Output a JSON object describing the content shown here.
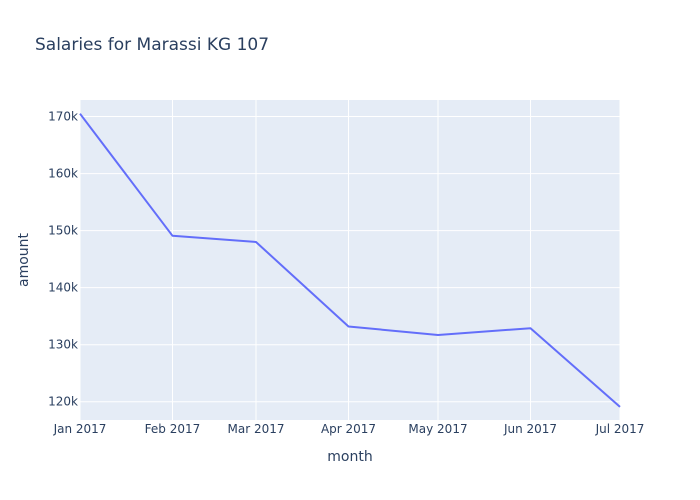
{
  "chart_data": {
    "type": "line",
    "title": "Salaries for Marassi KG 107",
    "xlabel": "month",
    "ylabel": "amount",
    "x": [
      "2017-01-01",
      "2017-02-01",
      "2017-03-01",
      "2017-04-01",
      "2017-05-01",
      "2017-06-01",
      "2017-07-01"
    ],
    "x_tick_labels": [
      "Jan 2017",
      "Feb 2017",
      "Mar 2017",
      "Apr 2017",
      "May 2017",
      "Jun 2017",
      "Jul 2017"
    ],
    "series": [
      {
        "values": [
          170500,
          149100,
          148000,
          133200,
          131700,
          132900,
          119100
        ],
        "color": "#636efa"
      }
    ],
    "y_ticks": [
      120000,
      130000,
      140000,
      150000,
      160000,
      170000
    ],
    "y_tick_labels": [
      "120k",
      "130k",
      "140k",
      "150k",
      "160k",
      "170k"
    ],
    "ylim": [
      116800,
      172900
    ],
    "grid": true,
    "plot_background": "#e5ecf6",
    "gridline_color": "#ffffff",
    "text_color": "#2a3f5f"
  }
}
